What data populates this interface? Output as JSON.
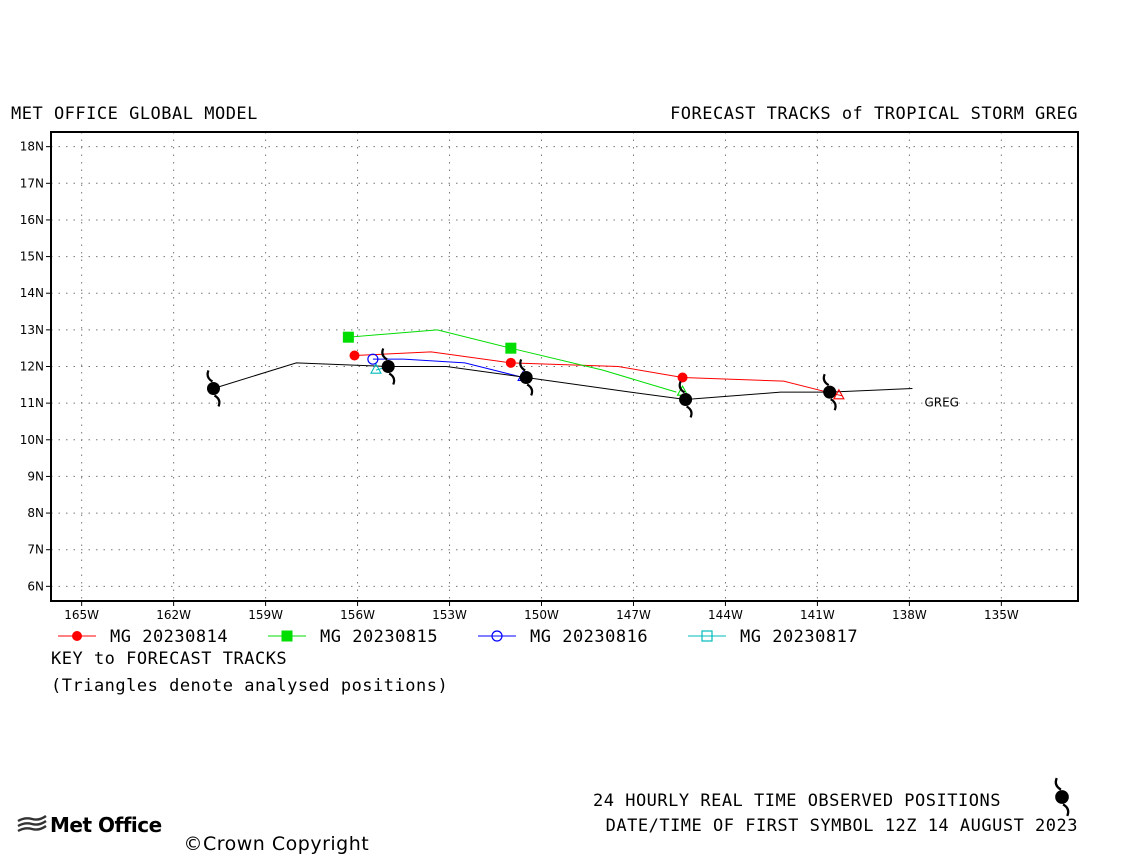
{
  "header": {
    "left_title": "MET OFFICE GLOBAL MODEL",
    "right_title": "FORECAST TRACKS of TROPICAL STORM GREG"
  },
  "chart_data": {
    "type": "scatter",
    "x_axis": {
      "range": [
        -166,
        -132.5
      ],
      "ticks": [
        -165,
        -162,
        -159,
        -156,
        -153,
        -150,
        -147,
        -144,
        -141,
        -138,
        -135
      ],
      "tick_labels": [
        "165W",
        "162W",
        "159W",
        "156W",
        "153W",
        "150W",
        "147W",
        "144W",
        "141W",
        "138W",
        "135W"
      ]
    },
    "y_axis": {
      "range": [
        5.6,
        18.4
      ],
      "ticks": [
        6,
        7,
        8,
        9,
        10,
        11,
        12,
        13,
        14,
        15,
        16,
        17,
        18
      ],
      "tick_labels": [
        "6N",
        "7N",
        "8N",
        "9N",
        "10N",
        "11N",
        "12N",
        "13N",
        "14N",
        "15N",
        "16N",
        "17N",
        "18N"
      ]
    },
    "grid": true,
    "storm_label": "GREG",
    "observed_track": {
      "points": [
        [
          -137.9,
          11.4
        ],
        [
          -140.6,
          11.3
        ],
        [
          -142.2,
          11.3
        ],
        [
          -145.3,
          11.1
        ],
        [
          -147.1,
          11.3
        ],
        [
          -150.5,
          11.7
        ],
        [
          -153.1,
          12.0
        ],
        [
          -155.0,
          12.0
        ],
        [
          -158.0,
          12.1
        ],
        [
          -160.7,
          11.4
        ]
      ],
      "symbols": [
        [
          -140.6,
          11.3
        ],
        [
          -145.3,
          11.1
        ],
        [
          -150.5,
          11.7
        ],
        [
          -155.0,
          12.0
        ],
        [
          -160.7,
          11.4
        ]
      ],
      "color": "#000000"
    },
    "series": [
      {
        "name": "MG 20230814",
        "color": "#ff0000",
        "marker": "filled-circle",
        "points": [
          [
            -140.2,
            11.2
          ],
          [
            -142.1,
            11.6
          ],
          [
            -145.4,
            11.7
          ],
          [
            -147.5,
            12.0
          ],
          [
            -151.0,
            12.1
          ],
          [
            -153.6,
            12.4
          ],
          [
            -156.1,
            12.3
          ]
        ],
        "markers": [
          [
            -145.4,
            11.7
          ],
          [
            -151.0,
            12.1
          ],
          [
            -156.1,
            12.3
          ]
        ]
      },
      {
        "name": "MG 20230815",
        "color": "#00dd00",
        "marker": "filled-square",
        "points": [
          [
            -145.6,
            11.3
          ],
          [
            -148.0,
            11.9
          ],
          [
            -151.0,
            12.5
          ],
          [
            -153.4,
            13.0
          ],
          [
            -156.3,
            12.8
          ]
        ],
        "markers": [
          [
            -151.0,
            12.5
          ],
          [
            -156.3,
            12.8
          ]
        ]
      },
      {
        "name": "MG 20230816",
        "color": "#0000ff",
        "marker": "open-circle",
        "points": [
          [
            -150.6,
            11.7
          ],
          [
            -152.5,
            12.1
          ],
          [
            -154.5,
            12.2
          ],
          [
            -155.5,
            12.2
          ]
        ],
        "markers": [
          [
            -155.5,
            12.2
          ]
        ]
      },
      {
        "name": "MG 20230817",
        "color": "#00bbbb",
        "marker": "open-square",
        "points": [
          [
            -155.0,
            12.0
          ],
          [
            -155.4,
            11.9
          ]
        ],
        "markers": []
      }
    ],
    "analysed_positions": [
      {
        "color": "#ff0000",
        "point": [
          -140.3,
          11.2
        ]
      },
      {
        "color": "#00dd00",
        "point": [
          -145.4,
          11.3
        ]
      },
      {
        "color": "#0000ff",
        "point": [
          -150.6,
          11.7
        ]
      },
      {
        "color": "#00bbbb",
        "point": [
          -155.4,
          11.9
        ]
      }
    ]
  },
  "legend": {
    "items": [
      {
        "label": "MG 20230814",
        "color": "#ff0000",
        "marker": "filled-circle"
      },
      {
        "label": "MG 20230815",
        "color": "#00dd00",
        "marker": "filled-square"
      },
      {
        "label": "MG 20230816",
        "color": "#0000ff",
        "marker": "open-circle"
      },
      {
        "label": "MG 20230817",
        "color": "#00bbbb",
        "marker": "open-square"
      }
    ],
    "key_title": "KEY to FORECAST TRACKS",
    "key_note": "(Triangles denote analysed positions)"
  },
  "footer": {
    "observed_note": "24 HOURLY REAL TIME OBSERVED POSITIONS",
    "datetime_note": "DATE/TIME OF FIRST SYMBOL 12Z 14 AUGUST 2023",
    "logo": "Met Office",
    "copyright": "Crown Copyright"
  }
}
